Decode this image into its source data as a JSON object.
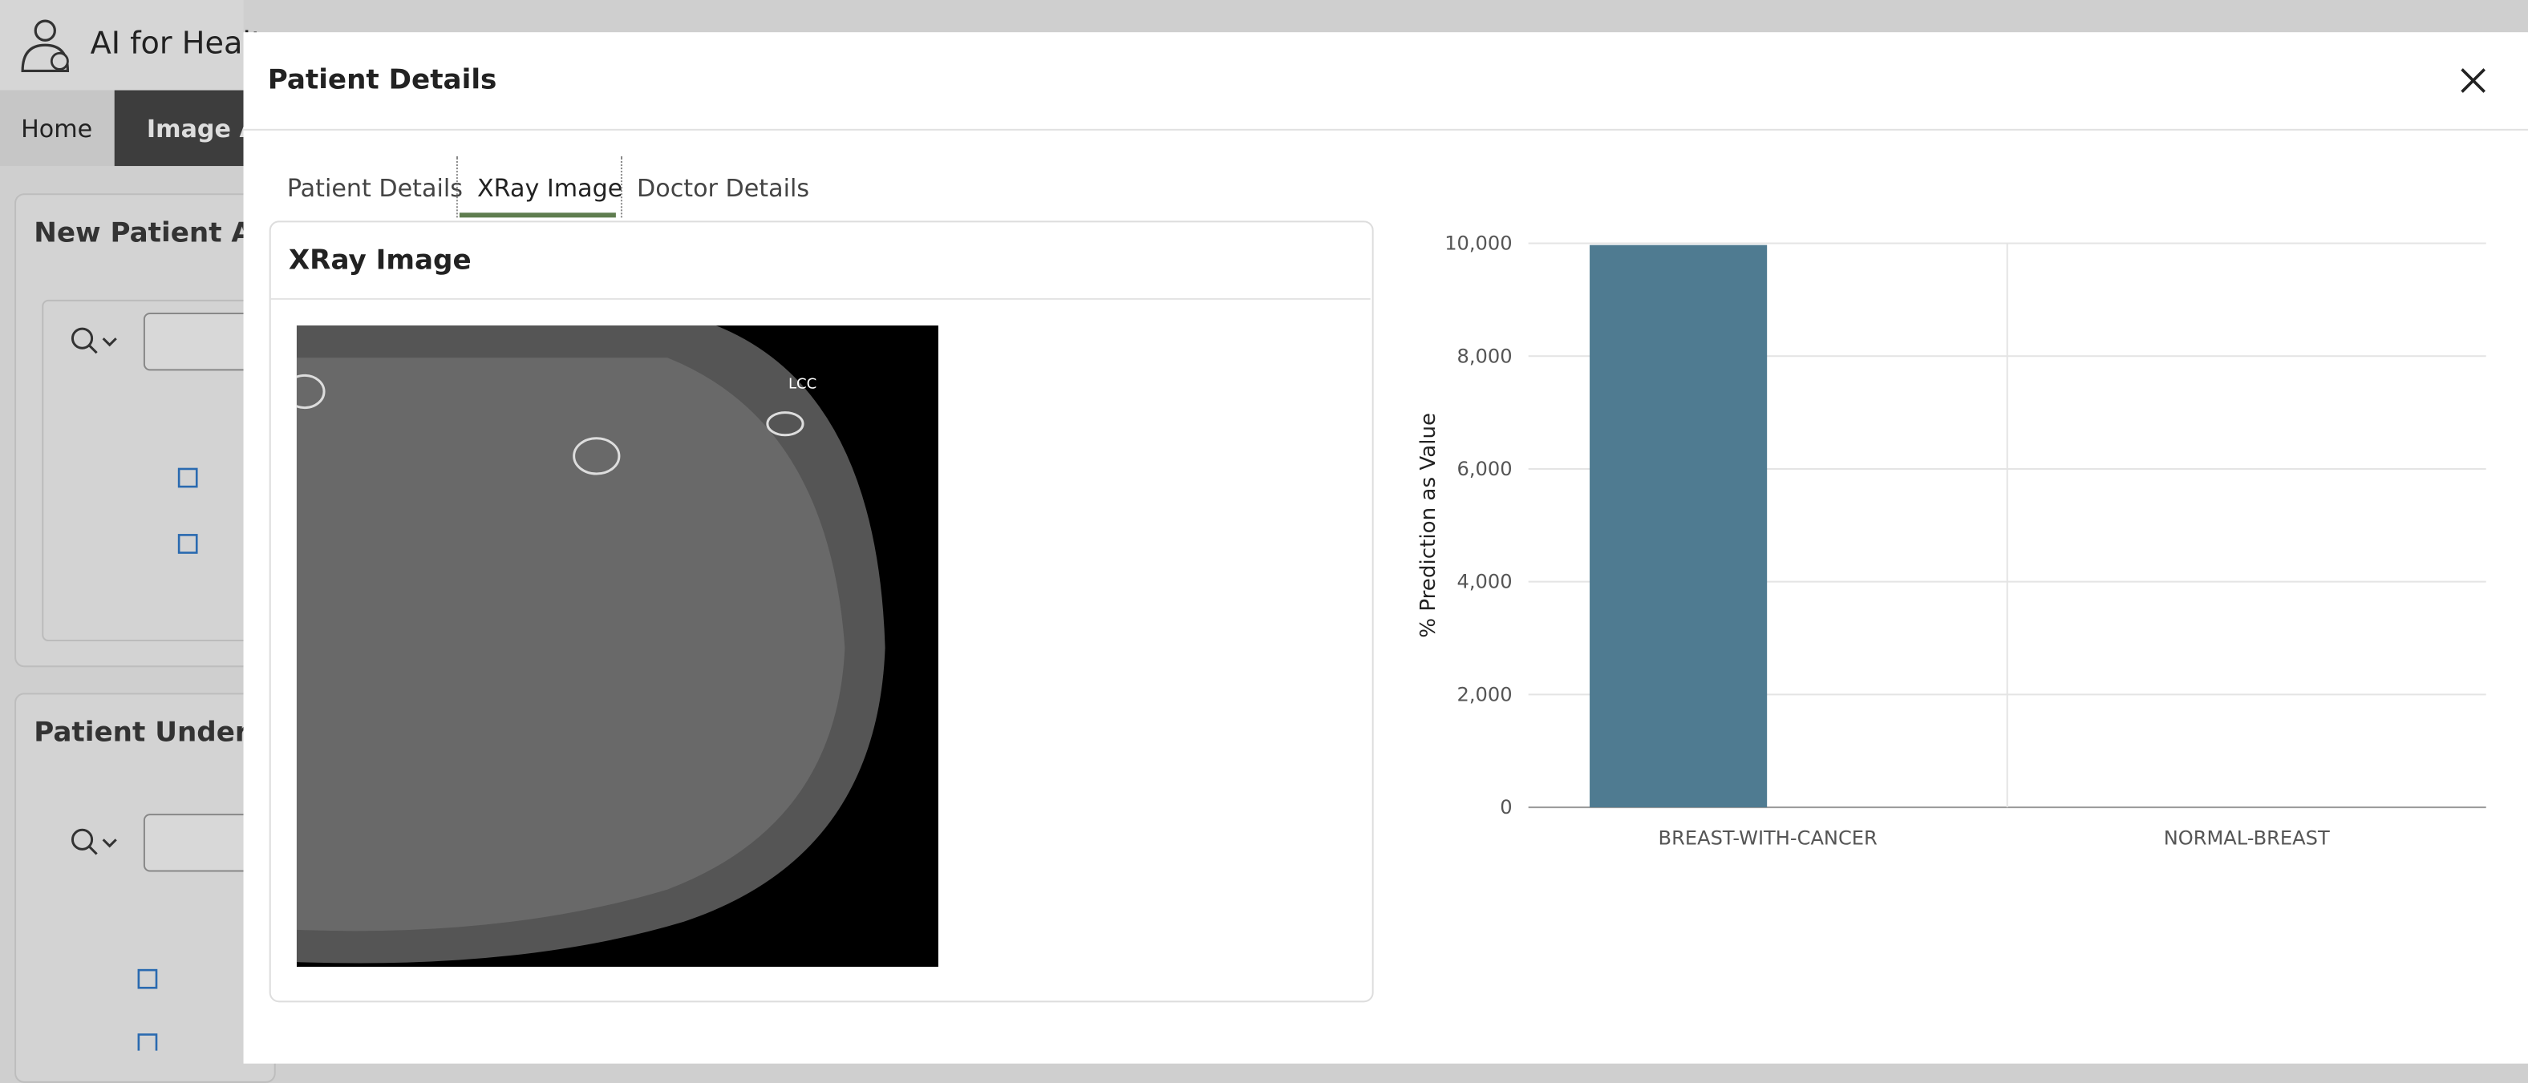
{
  "app": {
    "header_title": "AI for Healt",
    "nav": [
      "Home",
      "Image An"
    ],
    "sections": [
      "New Patient Adm",
      "Patient Under Me"
    ]
  },
  "dialog": {
    "title": "Patient Details",
    "tabs": [
      "Patient Details",
      "XRay Image",
      "Doctor Details"
    ],
    "panel_title": "XRay Image",
    "image_label": "LCC"
  },
  "chart_data": {
    "type": "bar",
    "y_label": "% Prediction as Value",
    "categories": [
      "BREAST-WITH-CANCER",
      "NORMAL-BREAST"
    ],
    "values": [
      9970,
      0
    ],
    "color": "#4f7b91",
    "ylim": [
      0,
      10000
    ],
    "yticks": [
      0,
      {
        "value": 2000,
        "label": "2,000"
      },
      {
        "value": 4000,
        "label": "4,000"
      },
      {
        "value": 6000,
        "label": "6,000"
      },
      {
        "value": 8000,
        "label": "8,000"
      },
      {
        "value": 10000,
        "label": "10,000"
      }
    ],
    "grid": true
  }
}
